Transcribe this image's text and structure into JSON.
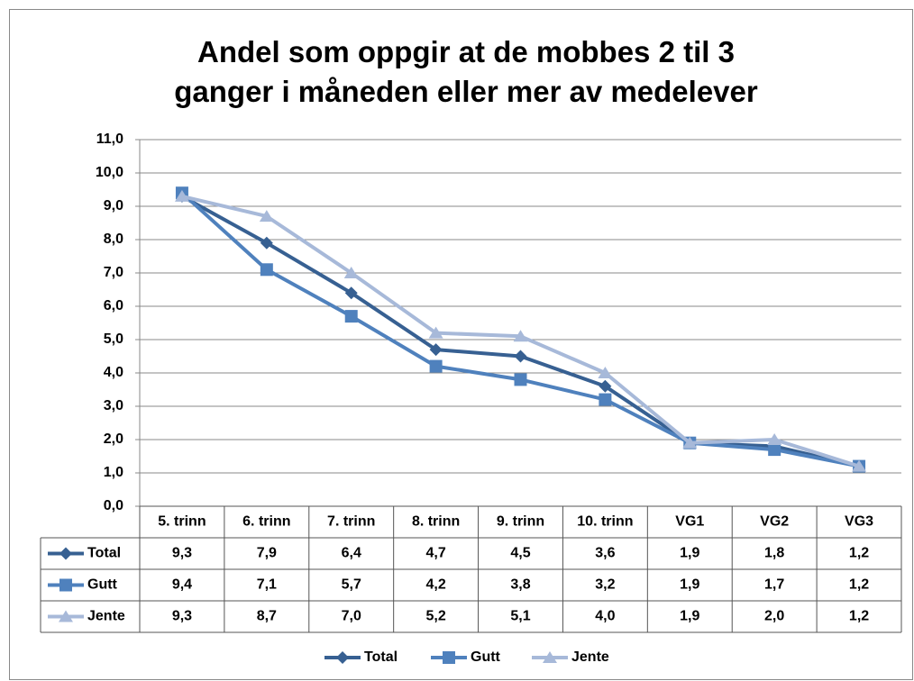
{
  "chart_data": {
    "type": "line",
    "title": "Andel som oppgir at de mobbes 2 til 3 ganger i måneden eller mer av medelever",
    "categories": [
      "5. trinn",
      "6. trinn",
      "7. trinn",
      "8. trinn",
      "9. trinn",
      "10. trinn",
      "VG1",
      "VG2",
      "VG3"
    ],
    "series": [
      {
        "name": "Total",
        "color": "#376092",
        "marker": "diamond",
        "values": [
          9.3,
          7.9,
          6.4,
          4.7,
          4.5,
          3.6,
          1.9,
          1.8,
          1.2
        ],
        "value_labels": [
          "9,3",
          "7,9",
          "6,4",
          "4,7",
          "4,5",
          "3,6",
          "1,9",
          "1,8",
          "1,2"
        ]
      },
      {
        "name": "Gutt",
        "color": "#4f81bd",
        "marker": "square",
        "values": [
          9.4,
          7.1,
          5.7,
          4.2,
          3.8,
          3.2,
          1.9,
          1.7,
          1.2
        ],
        "value_labels": [
          "9,4",
          "7,1",
          "5,7",
          "4,2",
          "3,8",
          "3,2",
          "1,9",
          "1,7",
          "1,2"
        ]
      },
      {
        "name": "Jente",
        "color": "#a7b9d9",
        "marker": "triangle",
        "values": [
          9.3,
          8.7,
          7.0,
          5.2,
          5.1,
          4.0,
          1.9,
          2.0,
          1.2
        ],
        "value_labels": [
          "9,3",
          "8,7",
          "7,0",
          "5,2",
          "5,1",
          "4,0",
          "1,9",
          "2,0",
          "1,2"
        ]
      }
    ],
    "ylim": [
      0,
      11
    ],
    "yticks": [
      {
        "value": 0,
        "label": "0,0"
      },
      {
        "value": 1,
        "label": "1,0"
      },
      {
        "value": 2,
        "label": "2,0"
      },
      {
        "value": 3,
        "label": "3,0"
      },
      {
        "value": 4,
        "label": "4,0"
      },
      {
        "value": 5,
        "label": "5,0"
      },
      {
        "value": 6,
        "label": "6,0"
      },
      {
        "value": 7,
        "label": "7,0"
      },
      {
        "value": 8,
        "label": "8,0"
      },
      {
        "value": 9,
        "label": "9,0"
      },
      {
        "value": 10,
        "label": "10,0"
      },
      {
        "value": 11,
        "label": "11,0"
      }
    ],
    "grid": true,
    "legend": "bottom"
  }
}
